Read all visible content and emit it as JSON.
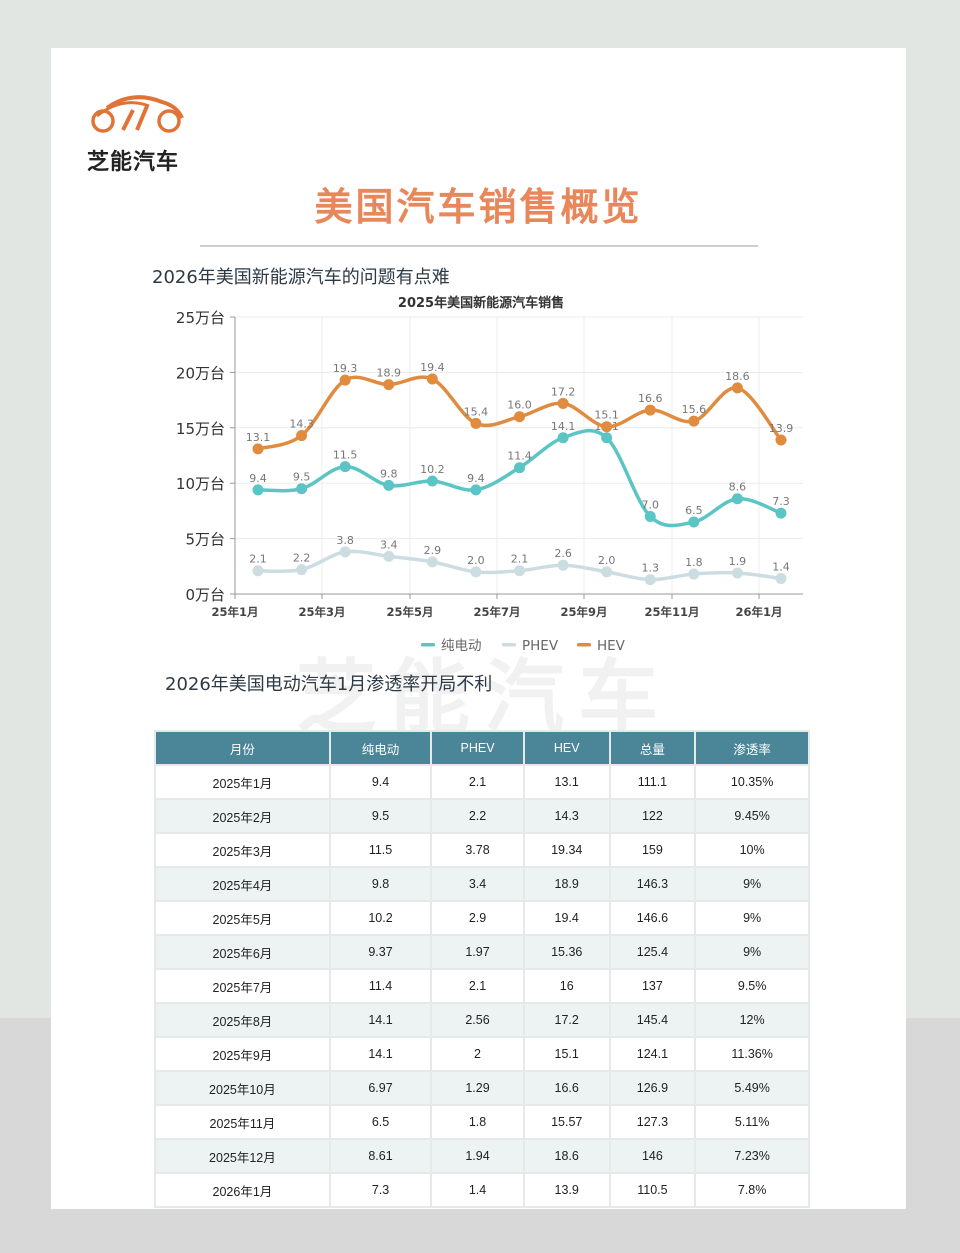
{
  "brand": {
    "name": "芝能汽车",
    "logo_color": "#e07338",
    "watermark": "芝能汽车"
  },
  "page": {
    "title": "美国汽车销售概览",
    "section1_heading": "2026年美国新能源汽车的问题有点难",
    "section2_heading": "2026年美国电动汽车1月渗透率开局不利"
  },
  "colors": {
    "bev": "#5bc4c4",
    "phev": "#ccdde2",
    "hev": "#e08b3e",
    "title": "#e8875a",
    "table_header": "#4a8697"
  },
  "chart_data": {
    "type": "line",
    "title": "2025年美国新能源汽车销售",
    "xlabel": "",
    "ylabel": "",
    "ylim": [
      0,
      25
    ],
    "y_ticks": [
      "0万台",
      "5万台",
      "10万台",
      "15万台",
      "20万台",
      "25万台"
    ],
    "x_ticks": [
      "25年1月",
      "25年3月",
      "25年5月",
      "25年7月",
      "25年9月",
      "25年11月",
      "26年1月"
    ],
    "grid": true,
    "legend_position": "bottom",
    "categories": [
      "25年1月",
      "25年2月",
      "25年3月",
      "25年4月",
      "25年5月",
      "25年6月",
      "25年7月",
      "25年8月",
      "25年9月",
      "25年10月",
      "25年11月",
      "25年12月",
      "26年1月"
    ],
    "series": [
      {
        "name": "纯电动",
        "color": "#5bc4c4",
        "values": [
          9.4,
          9.5,
          11.5,
          9.8,
          10.2,
          9.4,
          11.4,
          14.1,
          14.1,
          7.0,
          6.5,
          8.6,
          7.3
        ]
      },
      {
        "name": "PHEV",
        "color": "#ccdde2",
        "values": [
          2.1,
          2.2,
          3.8,
          3.4,
          2.9,
          2.0,
          2.1,
          2.6,
          2.0,
          1.3,
          1.8,
          1.9,
          1.4
        ]
      },
      {
        "name": "HEV",
        "color": "#e08b3e",
        "values": [
          13.1,
          14.3,
          19.3,
          18.9,
          19.4,
          15.4,
          16.0,
          17.2,
          15.1,
          16.6,
          15.6,
          18.6,
          13.9
        ]
      }
    ]
  },
  "table": {
    "headers": [
      "月份",
      "纯电动",
      "PHEV",
      "HEV",
      "总量",
      "渗透率"
    ],
    "rows": [
      [
        "2025年1月",
        "9.4",
        "2.1",
        "13.1",
        "111.1",
        "10.35%"
      ],
      [
        "2025年2月",
        "9.5",
        "2.2",
        "14.3",
        "122",
        "9.45%"
      ],
      [
        "2025年3月",
        "11.5",
        "3.78",
        "19.34",
        "159",
        "10%"
      ],
      [
        "2025年4月",
        "9.8",
        "3.4",
        "18.9",
        "146.3",
        "9%"
      ],
      [
        "2025年5月",
        "10.2",
        "2.9",
        "19.4",
        "146.6",
        "9%"
      ],
      [
        "2025年6月",
        "9.37",
        "1.97",
        "15.36",
        "125.4",
        "9%"
      ],
      [
        "2025年7月",
        "11.4",
        "2.1",
        "16",
        "137",
        "9.5%"
      ],
      [
        "2025年8月",
        "14.1",
        "2.56",
        "17.2",
        "145.4",
        "12%"
      ],
      [
        "2025年9月",
        "14.1",
        "2",
        "15.1",
        "124.1",
        "11.36%"
      ],
      [
        "2025年10月",
        "6.97",
        "1.29",
        "16.6",
        "126.9",
        "5.49%"
      ],
      [
        "2025年11月",
        "6.5",
        "1.8",
        "15.57",
        "127.3",
        "5.11%"
      ],
      [
        "2025年12月",
        "8.61",
        "1.94",
        "18.6",
        "146",
        "7.23%"
      ],
      [
        "2026年1月",
        "7.3",
        "1.4",
        "13.9",
        "110.5",
        "7.8%"
      ]
    ]
  }
}
